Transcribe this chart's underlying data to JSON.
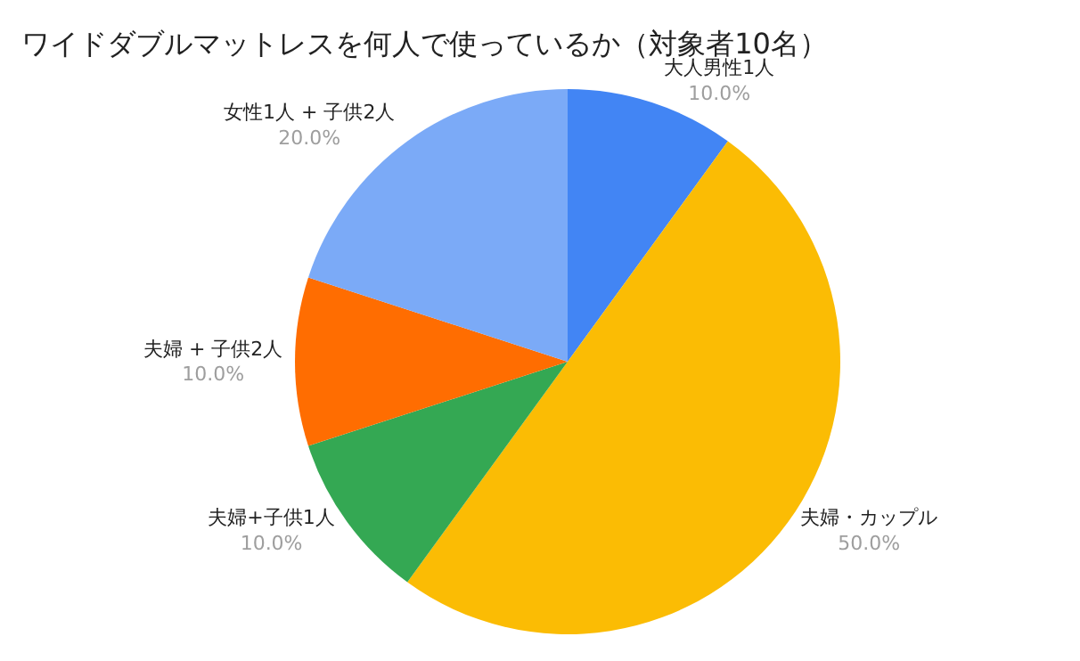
{
  "chart_data": {
    "type": "pie",
    "title": "ワイドダブルマットレスを何人で使っているか（対象者10名）",
    "categories": [
      "大人男性1人",
      "夫婦・カップル",
      "夫婦+子供1人",
      "夫婦 + 子供2人",
      "女性1人 + 子供2人"
    ],
    "values": [
      10,
      50,
      10,
      10,
      20
    ],
    "value_labels": [
      "10.0%",
      "50.0%",
      "10.0%",
      "10.0%",
      "20.0%"
    ],
    "colors": [
      "#4285f4",
      "#fbbc04",
      "#34a853",
      "#ff6d01",
      "#7baaf7"
    ],
    "legend": false
  }
}
